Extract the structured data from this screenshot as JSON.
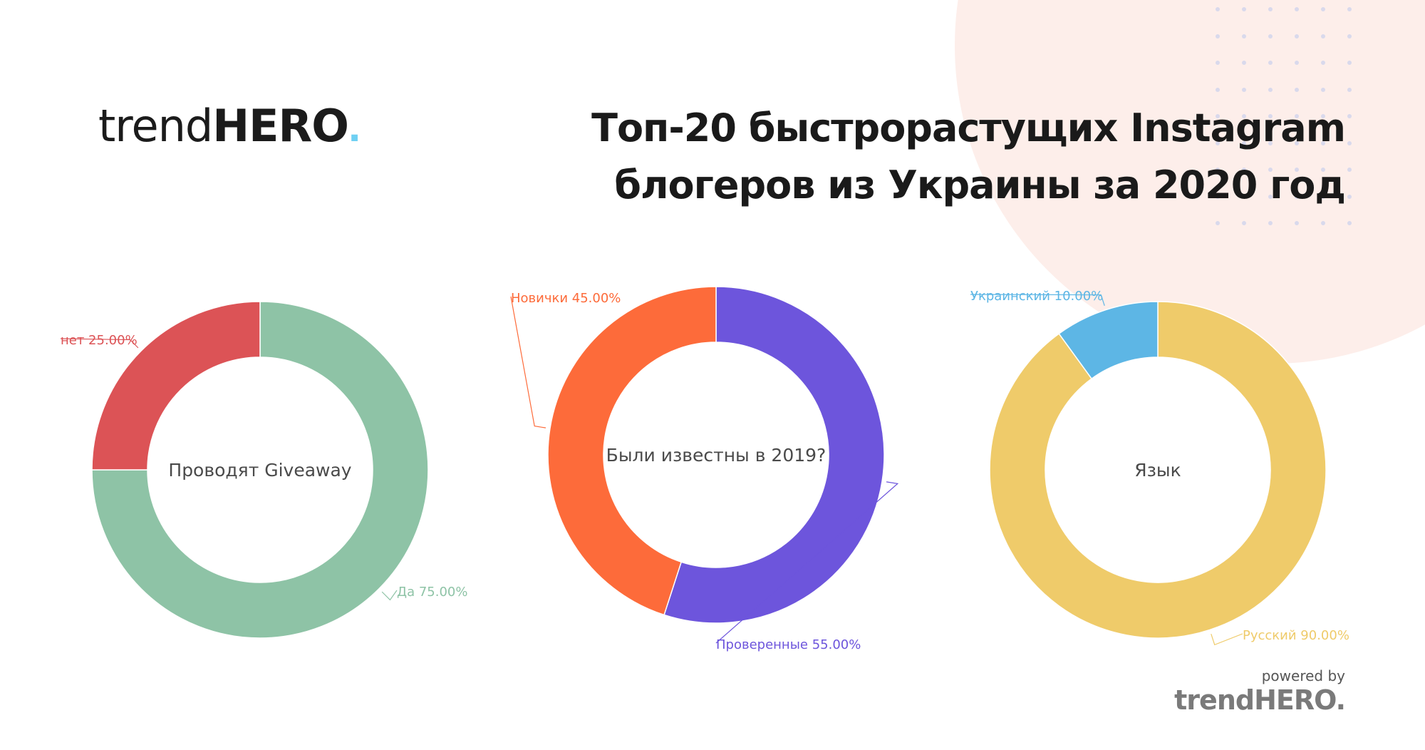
{
  "brand": {
    "logo_light": "trend",
    "logo_bold": "HERO",
    "logo_dot": ".",
    "accent": "#6fd0f3"
  },
  "title": {
    "line1": "Топ-20 быстрорастущих Instagram",
    "line2": "блогеров из Украины за 2020 год"
  },
  "footer": {
    "powered": "powered by",
    "logo": "trendHERO."
  },
  "chart_data": [
    {
      "type": "pie",
      "title": "Проводят Giveaway",
      "slices": [
        {
          "label": "Да",
          "value": 75,
          "text": "Да 75.00%",
          "color": "#8ec3a6"
        },
        {
          "label": "нет",
          "value": 25,
          "text": "нет 25.00%",
          "color": "#dc5356"
        }
      ]
    },
    {
      "type": "pie",
      "title": "Были известны в 2019?",
      "slices": [
        {
          "label": "Проверенные",
          "value": 55,
          "text": "Проверенные 55.00%",
          "color": "#6d55dc"
        },
        {
          "label": "Новички",
          "value": 45,
          "text": "Новички 45.00%",
          "color": "#fd6b3a"
        }
      ]
    },
    {
      "type": "pie",
      "title": "Язык",
      "slices": [
        {
          "label": "Русский",
          "value": 90,
          "text": "Русский 90.00%",
          "color": "#efcb6a"
        },
        {
          "label": "Украинский",
          "value": 10,
          "text": "Украинский 10.00%",
          "color": "#5db6e5"
        }
      ]
    }
  ]
}
